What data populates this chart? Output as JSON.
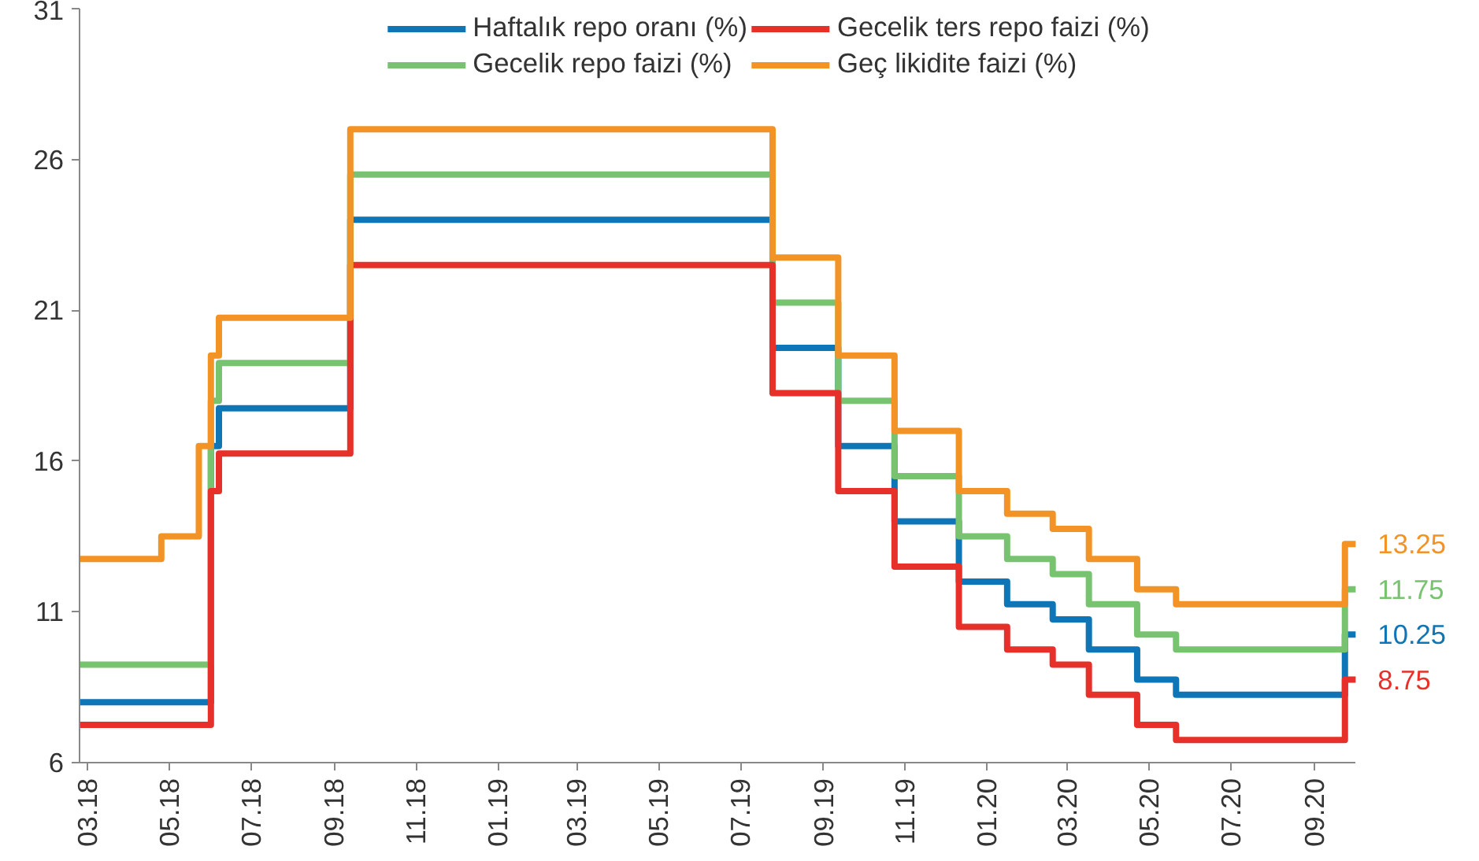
{
  "chart_data": {
    "type": "step",
    "legend": "top",
    "grid": false,
    "xlim": [
      "2018-02-23",
      "2020-10-02"
    ],
    "ylim": [
      6,
      31
    ],
    "yticks": [
      6,
      11,
      16,
      21,
      26,
      31
    ],
    "xticks": [
      {
        "value": "2018-03-01",
        "label": "03.18"
      },
      {
        "value": "2018-05-01",
        "label": "05.18"
      },
      {
        "value": "2018-07-01",
        "label": "07.18"
      },
      {
        "value": "2018-09-01",
        "label": "09.18"
      },
      {
        "value": "2018-11-01",
        "label": "11.18"
      },
      {
        "value": "2019-01-01",
        "label": "01.19"
      },
      {
        "value": "2019-03-01",
        "label": "03.19"
      },
      {
        "value": "2019-05-01",
        "label": "05.19"
      },
      {
        "value": "2019-07-01",
        "label": "07.19"
      },
      {
        "value": "2019-09-01",
        "label": "09.19"
      },
      {
        "value": "2019-11-01",
        "label": "11.19"
      },
      {
        "value": "2020-01-01",
        "label": "01.20"
      },
      {
        "value": "2020-03-01",
        "label": "03.20"
      },
      {
        "value": "2020-05-01",
        "label": "05.20"
      },
      {
        "value": "2020-07-01",
        "label": "07.20"
      },
      {
        "value": "2020-09-01",
        "label": "09.20"
      }
    ],
    "series": [
      {
        "name": "Haftalık repo oranı (%)",
        "color": "#0e75b6",
        "x": [
          "2018-02-23",
          "2018-06-01",
          "2018-06-07",
          "2018-09-13",
          "2019-07-25",
          "2019-09-12",
          "2019-10-24",
          "2019-12-11",
          "2020-01-16",
          "2020-02-19",
          "2020-03-17",
          "2020-04-22",
          "2020-05-21",
          "2020-09-24",
          "2020-10-02"
        ],
        "values": [
          8,
          16.5,
          17.75,
          24,
          19.75,
          16.5,
          14,
          12,
          11.25,
          10.75,
          9.75,
          8.75,
          8.25,
          10.25,
          10.25
        ],
        "value_labels": [
          null,
          null,
          null,
          null,
          null,
          null,
          null,
          null,
          null,
          null,
          null,
          null,
          null,
          null,
          "10.25"
        ]
      },
      {
        "name": "Gecelik repo faizi (%)",
        "color": "#77c36f",
        "x": [
          "2018-02-23",
          "2018-06-01",
          "2018-06-07",
          "2018-09-13",
          "2019-07-25",
          "2019-09-12",
          "2019-10-24",
          "2019-12-11",
          "2020-01-16",
          "2020-02-19",
          "2020-03-17",
          "2020-04-22",
          "2020-05-21",
          "2020-09-24",
          "2020-10-02"
        ],
        "values": [
          9.25,
          18,
          19.25,
          25.5,
          21.25,
          18,
          15.5,
          13.5,
          12.75,
          12.25,
          11.25,
          10.25,
          9.75,
          11.75,
          11.75
        ],
        "value_labels": [
          null,
          null,
          null,
          null,
          null,
          null,
          null,
          null,
          null,
          null,
          null,
          null,
          null,
          null,
          "11.75"
        ]
      },
      {
        "name": "Gecelik ters repo faizi (%)",
        "color": "#e8302a",
        "x": [
          "2018-02-23",
          "2018-06-01",
          "2018-06-07",
          "2018-09-13",
          "2019-07-25",
          "2019-09-12",
          "2019-10-24",
          "2019-12-11",
          "2020-01-16",
          "2020-02-19",
          "2020-03-17",
          "2020-04-22",
          "2020-05-21",
          "2020-09-24",
          "2020-10-02"
        ],
        "values": [
          7.25,
          15,
          16.25,
          22.5,
          18.25,
          15,
          12.5,
          10.5,
          9.75,
          9.25,
          8.25,
          7.25,
          6.75,
          8.75,
          8.75
        ],
        "value_labels": [
          null,
          null,
          null,
          null,
          null,
          null,
          null,
          null,
          null,
          null,
          null,
          null,
          null,
          null,
          "8.75"
        ]
      },
      {
        "name": "Geç likidite faizi (%)",
        "color": "#f39325",
        "x": [
          "2018-02-23",
          "2018-04-25",
          "2018-05-23",
          "2018-06-01",
          "2018-06-07",
          "2018-09-13",
          "2019-07-25",
          "2019-09-12",
          "2019-10-24",
          "2019-12-11",
          "2020-01-16",
          "2020-02-19",
          "2020-03-17",
          "2020-04-22",
          "2020-05-21",
          "2020-09-24",
          "2020-10-02"
        ],
        "values": [
          12.75,
          13.5,
          16.5,
          19.5,
          20.75,
          27,
          22.75,
          19.5,
          17,
          15,
          14.25,
          13.75,
          12.75,
          11.75,
          11.25,
          13.25,
          13.25
        ],
        "value_labels": [
          null,
          null,
          null,
          null,
          null,
          null,
          null,
          null,
          null,
          null,
          null,
          null,
          null,
          null,
          null,
          null,
          "13.25"
        ]
      }
    ]
  }
}
